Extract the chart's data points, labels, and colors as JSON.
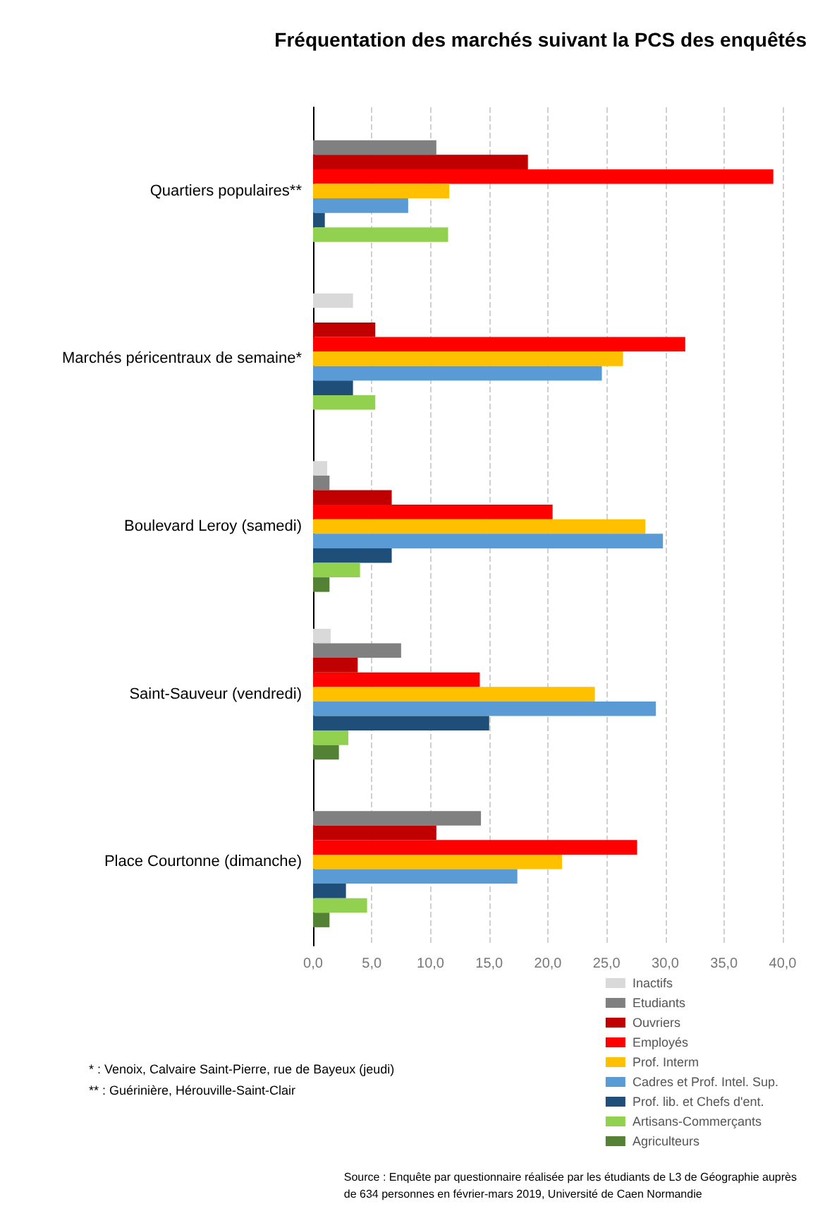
{
  "chart_data": {
    "type": "bar",
    "orientation": "horizontal",
    "title": "Fréquentation des marchés suivant la PCS des enquêtés",
    "categories": [
      "Quartiers populaires**",
      "Marchés péricentraux de semaine*",
      "Boulevard Leroy (samedi)",
      "Saint-Sauveur (vendredi)",
      "Place Courtonne (dimanche)"
    ],
    "series": [
      {
        "name": "Inactifs",
        "color": "#d9d9d9",
        "values": [
          0,
          3.4,
          1.2,
          1.5,
          null
        ]
      },
      {
        "name": "Etudiants",
        "color": "#808080",
        "values": [
          10.5,
          0,
          1.4,
          7.5,
          14.3
        ]
      },
      {
        "name": "Ouvriers",
        "color": "#c00000",
        "values": [
          18.3,
          5.3,
          6.7,
          3.8,
          10.5
        ]
      },
      {
        "name": "Employés",
        "color": "#ff0000",
        "values": [
          39.2,
          31.7,
          20.4,
          14.2,
          27.6
        ]
      },
      {
        "name": "Prof. Interm",
        "color": "#ffc000",
        "values": [
          11.6,
          26.4,
          28.3,
          24.0,
          21.2
        ]
      },
      {
        "name": "Cadres et Prof. Intel. Sup.",
        "color": "#5b9bd5",
        "values": [
          8.1,
          24.6,
          29.8,
          29.2,
          17.4
        ]
      },
      {
        "name": "Prof. lib. et Chefs d'ent.",
        "color": "#1f4e79",
        "values": [
          1.0,
          3.4,
          6.7,
          15.0,
          2.8
        ]
      },
      {
        "name": "Artisans-Commerçants",
        "color": "#92d050",
        "values": [
          11.5,
          5.3,
          4.0,
          3.0,
          4.6
        ]
      },
      {
        "name": "Agriculteurs",
        "color": "#548235",
        "values": [
          0,
          0,
          1.4,
          2.2,
          1.4
        ]
      }
    ],
    "xlim": [
      0,
      40
    ],
    "xticks": [
      {
        "value": 0,
        "label": "0,0"
      },
      {
        "value": 5,
        "label": "5,0"
      },
      {
        "value": 10,
        "label": "10,0"
      },
      {
        "value": 15,
        "label": "15,0"
      },
      {
        "value": 20,
        "label": "20,0"
      },
      {
        "value": 25,
        "label": "25,0"
      },
      {
        "value": 30,
        "label": "30,0"
      },
      {
        "value": 35,
        "label": "35,0"
      },
      {
        "value": 40,
        "label": "40,0"
      }
    ],
    "grid": "x",
    "legend": "bottom right",
    "annotations": [
      "* : Venoix, Calvaire Saint-Pierre, rue de Bayeux (jeudi)",
      "** : Guérinière, Hérouville-Saint-Clair",
      "Source : Enquête par questionnaire réalisée par les étudiants de L3 de Géographie auprès\nde 634 personnes en février-mars 2019, Université de Caen Normandie"
    ]
  }
}
